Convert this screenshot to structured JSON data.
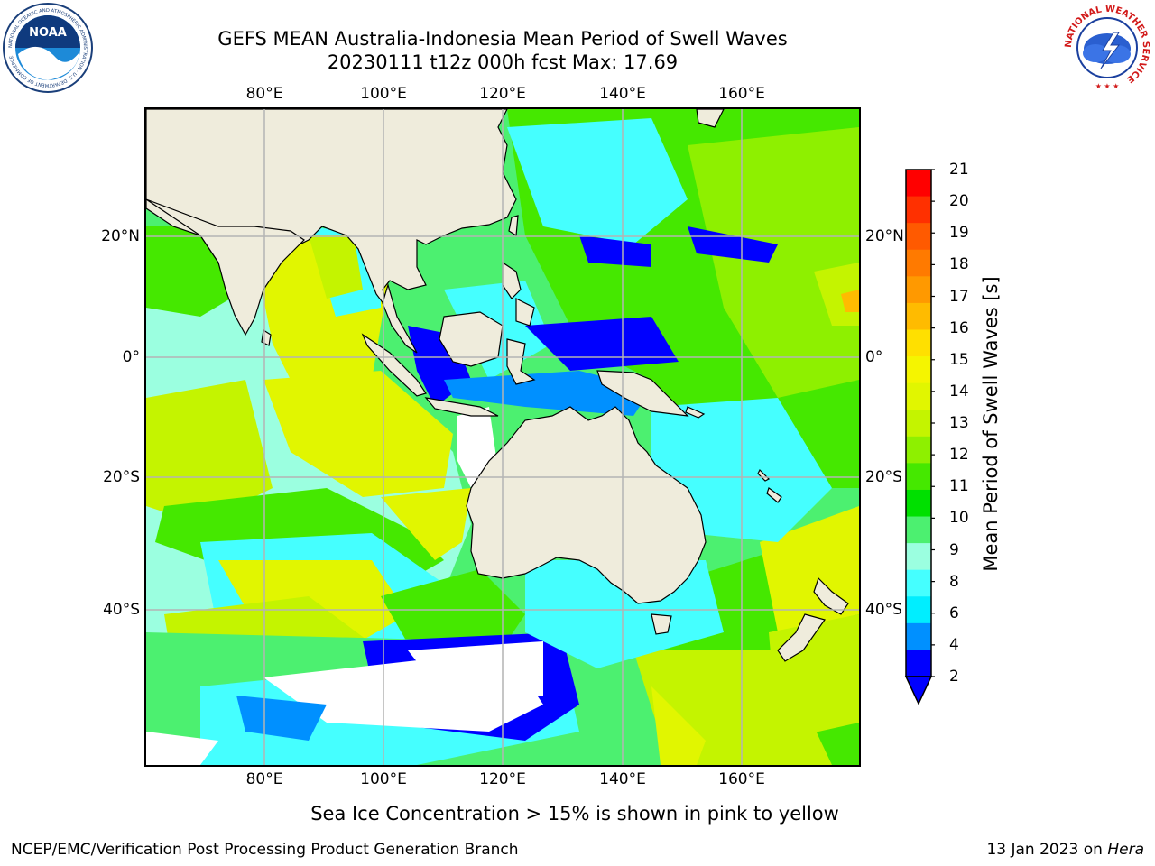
{
  "title_line1": "GEFS MEAN Australia-Indonesia Mean Period of Swell Waves",
  "title_line2": "20230111 t12z 000h fcst   Max: 17.69",
  "longitude_labels": [
    "80°E",
    "100°E",
    "120°E",
    "140°E",
    "160°E"
  ],
  "latitude_labels": [
    "20°N",
    "0°",
    "20°S",
    "40°S"
  ],
  "map": {
    "lon_range": [
      60,
      180
    ],
    "lat_range": [
      -60,
      40
    ],
    "gridline_lons": [
      80,
      100,
      120,
      140,
      160
    ],
    "gridline_lats": [
      20,
      0,
      -20,
      -40
    ],
    "land_color": "#efecdc",
    "grid_color": "#b4b4b4"
  },
  "colorbar": {
    "title": "Mean Period of Swell Waves [s]",
    "ticks": [
      "21",
      "20",
      "19",
      "18",
      "17",
      "16",
      "15",
      "14",
      "13",
      "12",
      "11",
      "10",
      "9",
      "8",
      "6",
      "4",
      "2"
    ],
    "colors": [
      "#ff0000",
      "#ff3000",
      "#ff5a00",
      "#ff7a00",
      "#ff9900",
      "#ffbb00",
      "#ffe000",
      "#f5f500",
      "#e1f600",
      "#c4f400",
      "#8ef000",
      "#45e800",
      "#00e000",
      "#4cf070",
      "#9bffe0",
      "#45ffff",
      "#00eeff",
      "#0090ff",
      "#0000ff"
    ],
    "extend": "min"
  },
  "footnote": "Sea Ice Concentration > 15% is shown in pink to yellow",
  "footer_left": "NCEP/EMC/Verification Post Processing Product Generation Branch",
  "footer_right_prefix": "13 Jan 2023 on ",
  "footer_right_machine": "Hera",
  "logos": {
    "noaa": {
      "text": "NOAA",
      "ring_text": "NATIONAL OCEANIC AND ATMOSPHERIC ADMINISTRATION · U.S. DEPARTMENT OF COMMERCE",
      "color": "#1a5a9e"
    },
    "nws": {
      "ring_text": "NATIONAL WEATHER SERVICE",
      "color": "#d21a1a"
    }
  }
}
